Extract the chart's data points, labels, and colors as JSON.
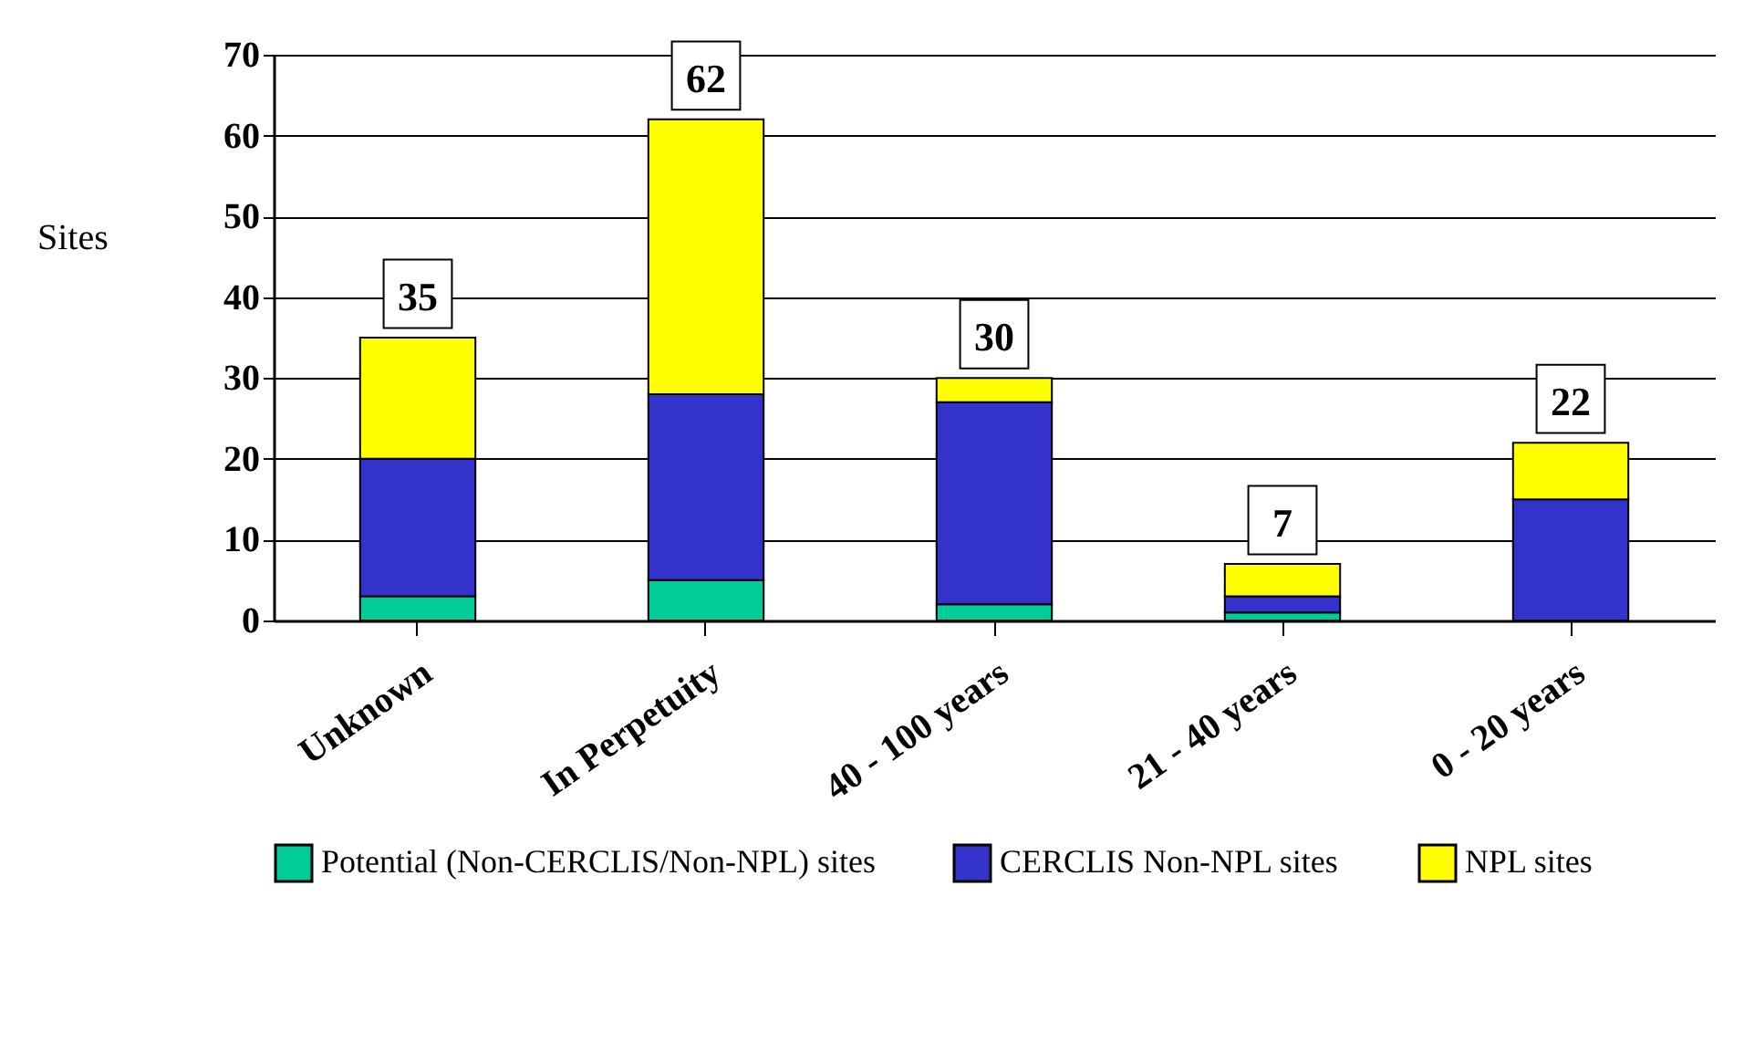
{
  "chart_data": {
    "type": "bar",
    "stacked": true,
    "ylabel": "Sites",
    "categories": [
      "Unknown",
      "In Perpetuity",
      "40 - 100 years",
      "21 - 40 years",
      "0 - 20 years"
    ],
    "series": [
      {
        "name": "Potential (Non-CERCLIS/Non-NPL) sites",
        "color": "#00cc99",
        "values": [
          3,
          5,
          2,
          1,
          0
        ]
      },
      {
        "name": "CERCLIS Non-NPL sites",
        "color": "#3333cc",
        "values": [
          17,
          23,
          25,
          2,
          15
        ]
      },
      {
        "name": "NPL sites",
        "color": "#ffff00",
        "values": [
          15,
          34,
          3,
          4,
          7
        ]
      }
    ],
    "totals": [
      "35",
      "62",
      "30",
      "7",
      "22"
    ],
    "ylim": [
      0,
      70
    ],
    "yticks": [
      0,
      10,
      20,
      30,
      40,
      50,
      60,
      70
    ],
    "grid": "y",
    "legend": "bottom"
  }
}
